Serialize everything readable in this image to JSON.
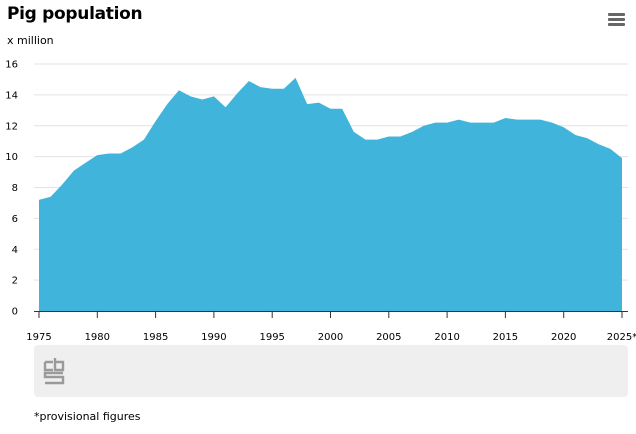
{
  "header": {
    "title": "Pig population",
    "unit": "x million"
  },
  "menu": {
    "icon": "hamburger-menu-icon"
  },
  "logo": {
    "icon": "cbs-logo-icon"
  },
  "footnote": "*provisional figures",
  "colors": {
    "area_fill": "#40b4da",
    "grid": "#e3e3e3",
    "axis": "#333333",
    "logo_bar": "#efefef",
    "logo": "#9a9a9a"
  },
  "chart_data": {
    "type": "area",
    "title": "Pig population",
    "ylabel": "x million",
    "xlabel": "",
    "xlim": [
      1975,
      2025
    ],
    "ylim": [
      0,
      16
    ],
    "yticks": [
      0,
      2,
      4,
      6,
      8,
      10,
      12,
      14,
      16
    ],
    "xticks": [
      1975,
      1980,
      1985,
      1990,
      1995,
      2000,
      2005,
      2010,
      2015,
      2020,
      2025
    ],
    "xtick_labels": [
      "1975",
      "1980",
      "1985",
      "1990",
      "1995",
      "2000",
      "2005",
      "2010",
      "2015",
      "2020",
      "2025*"
    ],
    "grid": true,
    "legend": "none",
    "x": [
      1975,
      1976,
      1977,
      1978,
      1979,
      1980,
      1981,
      1982,
      1983,
      1984,
      1985,
      1986,
      1987,
      1988,
      1989,
      1990,
      1991,
      1992,
      1993,
      1994,
      1995,
      1996,
      1997,
      1998,
      1999,
      2000,
      2001,
      2002,
      2003,
      2004,
      2005,
      2006,
      2007,
      2008,
      2009,
      2010,
      2011,
      2012,
      2013,
      2014,
      2015,
      2016,
      2017,
      2018,
      2019,
      2020,
      2021,
      2022,
      2023,
      2024,
      2025
    ],
    "values": [
      7.2,
      7.4,
      8.2,
      9.1,
      9.6,
      10.1,
      10.2,
      10.2,
      10.6,
      11.1,
      12.3,
      13.4,
      14.3,
      13.9,
      13.7,
      13.9,
      13.2,
      14.1,
      14.9,
      14.5,
      14.4,
      14.4,
      15.1,
      13.4,
      13.5,
      13.1,
      13.1,
      11.6,
      11.1,
      11.1,
      11.3,
      11.3,
      11.6,
      12.0,
      12.2,
      12.2,
      12.4,
      12.2,
      12.2,
      12.2,
      12.5,
      12.4,
      12.4,
      12.4,
      12.2,
      11.9,
      11.4,
      11.2,
      10.8,
      10.5,
      9.9
    ]
  }
}
